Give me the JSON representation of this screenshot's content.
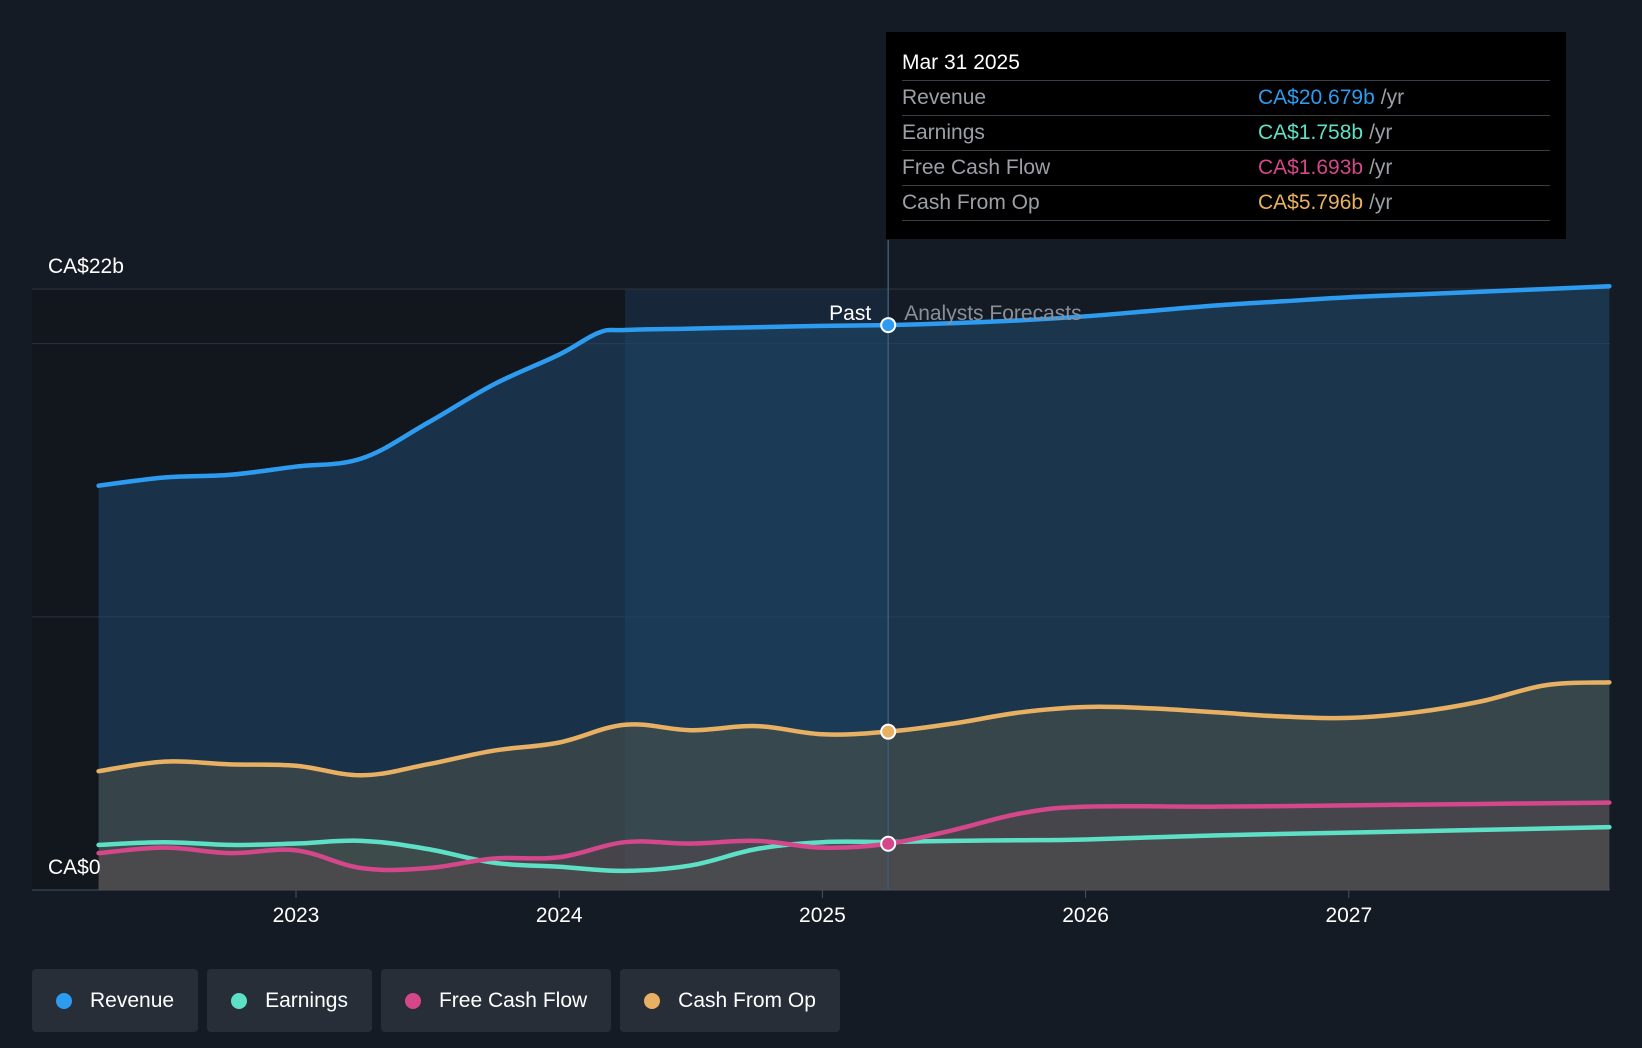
{
  "chart_data": {
    "type": "area",
    "title": "",
    "y_axis": {
      "top_label": "CA$22b",
      "bottom_label": "CA$0",
      "ylim": [
        0,
        22
      ]
    },
    "x_axis": {
      "ticks": [
        "2023",
        "2024",
        "2025",
        "2026",
        "2027"
      ],
      "xlim": [
        2022.25,
        2027.99
      ]
    },
    "divider": {
      "x": 2025.25,
      "past_label": "Past",
      "forecast_label": "Analysts Forecasts"
    },
    "series": [
      {
        "name": "Revenue",
        "color": "#2d9cf0",
        "x": [
          2022.25,
          2022.5,
          2022.75,
          2023.0,
          2023.25,
          2023.5,
          2023.75,
          2024.0,
          2024.15,
          2024.25,
          2024.5,
          2024.75,
          2025.0,
          2025.25,
          2025.5,
          2025.75,
          2026.0,
          2026.25,
          2026.5,
          2026.75,
          2027.0,
          2027.25,
          2027.5,
          2027.75,
          2027.99
        ],
        "values": [
          14.8,
          15.1,
          15.2,
          15.5,
          15.8,
          17.1,
          18.5,
          19.6,
          20.4,
          20.5,
          20.55,
          20.6,
          20.65,
          20.679,
          20.75,
          20.85,
          21.0,
          21.2,
          21.4,
          21.55,
          21.7,
          21.8,
          21.9,
          22.0,
          22.1
        ]
      },
      {
        "name": "Earnings",
        "color": "#5ee0c6",
        "x": [
          2022.25,
          2022.5,
          2022.75,
          2023.0,
          2023.25,
          2023.5,
          2023.75,
          2024.0,
          2024.25,
          2024.5,
          2024.75,
          2025.0,
          2025.25,
          2025.5,
          2025.75,
          2026.0,
          2026.5,
          2027.0,
          2027.5,
          2027.99
        ],
        "values": [
          1.65,
          1.75,
          1.65,
          1.7,
          1.8,
          1.5,
          1.0,
          0.85,
          0.7,
          0.9,
          1.5,
          1.75,
          1.758,
          1.8,
          1.82,
          1.85,
          2.0,
          2.1,
          2.2,
          2.3
        ]
      },
      {
        "name": "Free Cash Flow",
        "color": "#d4478a",
        "x": [
          2022.25,
          2022.5,
          2022.75,
          2023.0,
          2023.25,
          2023.5,
          2023.75,
          2024.0,
          2024.25,
          2024.5,
          2024.75,
          2025.0,
          2025.25,
          2025.5,
          2025.75,
          2026.0,
          2026.5,
          2027.0,
          2027.5,
          2027.99
        ],
        "values": [
          1.35,
          1.55,
          1.35,
          1.45,
          0.8,
          0.8,
          1.15,
          1.2,
          1.75,
          1.7,
          1.8,
          1.55,
          1.693,
          2.2,
          2.8,
          3.05,
          3.05,
          3.1,
          3.15,
          3.2
        ]
      },
      {
        "name": "Cash From Op",
        "color": "#e8b062",
        "x": [
          2022.25,
          2022.5,
          2022.75,
          2023.0,
          2023.25,
          2023.5,
          2023.75,
          2024.0,
          2024.25,
          2024.5,
          2024.75,
          2025.0,
          2025.25,
          2025.5,
          2025.75,
          2026.0,
          2026.25,
          2026.5,
          2026.75,
          2027.0,
          2027.25,
          2027.5,
          2027.75,
          2027.99
        ],
        "values": [
          4.35,
          4.7,
          4.6,
          4.55,
          4.2,
          4.6,
          5.1,
          5.4,
          6.05,
          5.85,
          6.0,
          5.7,
          5.796,
          6.1,
          6.5,
          6.7,
          6.65,
          6.5,
          6.35,
          6.3,
          6.5,
          6.9,
          7.5,
          7.6
        ]
      }
    ],
    "tooltip": {
      "date": "Mar 31 2025",
      "rows": [
        {
          "label": "Revenue",
          "value": "CA$20.679b",
          "unit": "/yr",
          "color": "#2d9cf0"
        },
        {
          "label": "Earnings",
          "value": "CA$1.758b",
          "unit": "/yr",
          "color": "#5ee0c6"
        },
        {
          "label": "Free Cash Flow",
          "value": "CA$1.693b",
          "unit": "/yr",
          "color": "#d4478a"
        },
        {
          "label": "Cash From Op",
          "value": "CA$5.796b",
          "unit": "/yr",
          "color": "#e8b062"
        }
      ]
    },
    "legend": [
      {
        "label": "Revenue",
        "color": "#2d9cf0"
      },
      {
        "label": "Earnings",
        "color": "#5ee0c6"
      },
      {
        "label": "Free Cash Flow",
        "color": "#d4478a"
      },
      {
        "label": "Cash From Op",
        "color": "#e8b062"
      }
    ]
  }
}
